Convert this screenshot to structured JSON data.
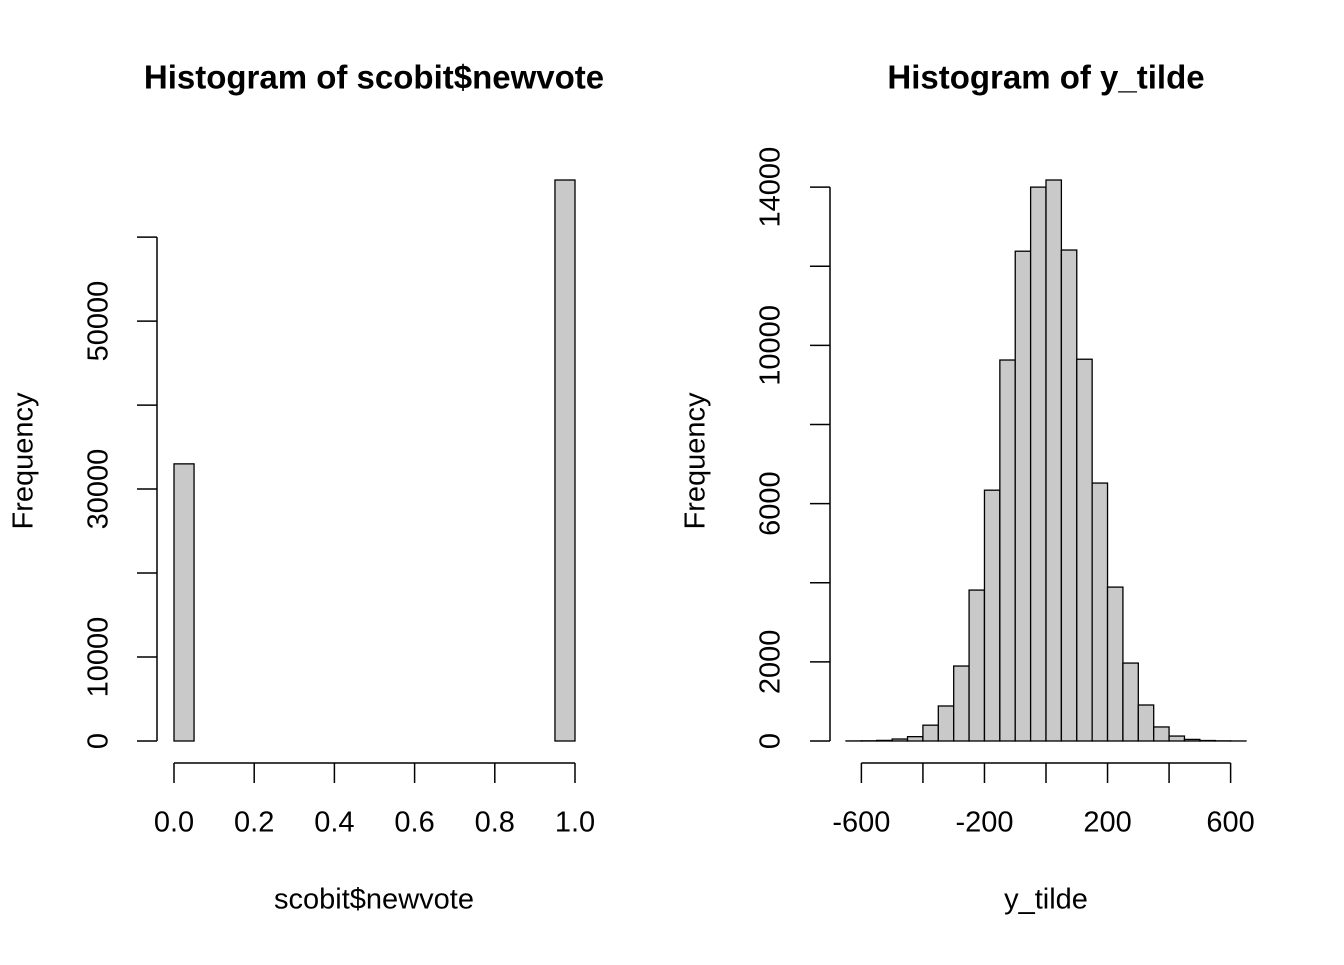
{
  "chart_data": [
    {
      "type": "histogram",
      "title": "Histogram of scobit$newvote",
      "xlabel": "scobit$newvote",
      "ylabel": "Frequency",
      "bins": [
        0,
        0.05,
        0.1,
        0.15,
        0.2,
        0.25,
        0.3,
        0.35,
        0.4,
        0.45,
        0.5,
        0.55,
        0.6,
        0.65,
        0.7,
        0.75,
        0.8,
        0.85,
        0.9,
        0.95,
        1
      ],
      "values": [
        33000,
        0,
        0,
        0,
        0,
        0,
        0,
        0,
        0,
        0,
        0,
        0,
        0,
        0,
        0,
        0,
        0,
        0,
        0,
        66800
      ],
      "color": "#c9c9c9",
      "xlim": [
        0,
        1
      ],
      "ylim": [
        0,
        66800
      ],
      "xticks": [
        {
          "value": 0,
          "label": "0.0"
        },
        {
          "value": 0.2,
          "label": "0.2"
        },
        {
          "value": 0.4,
          "label": "0.4"
        },
        {
          "value": 0.6,
          "label": "0.6"
        },
        {
          "value": 0.8,
          "label": "0.8"
        },
        {
          "value": 1,
          "label": "1.0"
        }
      ],
      "yticks": [
        0,
        10000,
        {
          "value": 20000,
          "label": null
        },
        30000,
        {
          "value": 40000,
          "label": null
        },
        50000,
        {
          "value": 60000,
          "label": null
        }
      ]
    },
    {
      "type": "histogram",
      "title": "Histogram of y_tilde",
      "xlabel": "y_tilde",
      "ylabel": "Frequency",
      "bins": [
        -650,
        -600,
        -550,
        -500,
        -450,
        -400,
        -350,
        -300,
        -250,
        -200,
        -150,
        -100,
        -50,
        0,
        50,
        100,
        150,
        200,
        250,
        300,
        350,
        400,
        450,
        500,
        550,
        600,
        650
      ],
      "values": [
        2,
        5,
        15,
        50,
        110,
        400,
        885,
        1895,
        3815,
        6340,
        9630,
        12380,
        14000,
        14180,
        12410,
        9650,
        6520,
        3890,
        1970,
        910,
        355,
        125,
        40,
        12,
        4,
        1
      ],
      "color": "#c9c9c9",
      "xlim": [
        -650,
        650
      ],
      "ylim": [
        0,
        14180
      ],
      "xticks": [
        -600,
        {
          "value": -400,
          "label": null
        },
        -200,
        {
          "value": 0,
          "label": null
        },
        200,
        {
          "value": 400,
          "label": null
        },
        600
      ],
      "yticks": [
        0,
        2000,
        {
          "value": 4000,
          "label": null
        },
        6000,
        {
          "value": 8000,
          "label": null
        },
        10000,
        {
          "value": 12000,
          "label": null
        },
        14000
      ]
    }
  ]
}
